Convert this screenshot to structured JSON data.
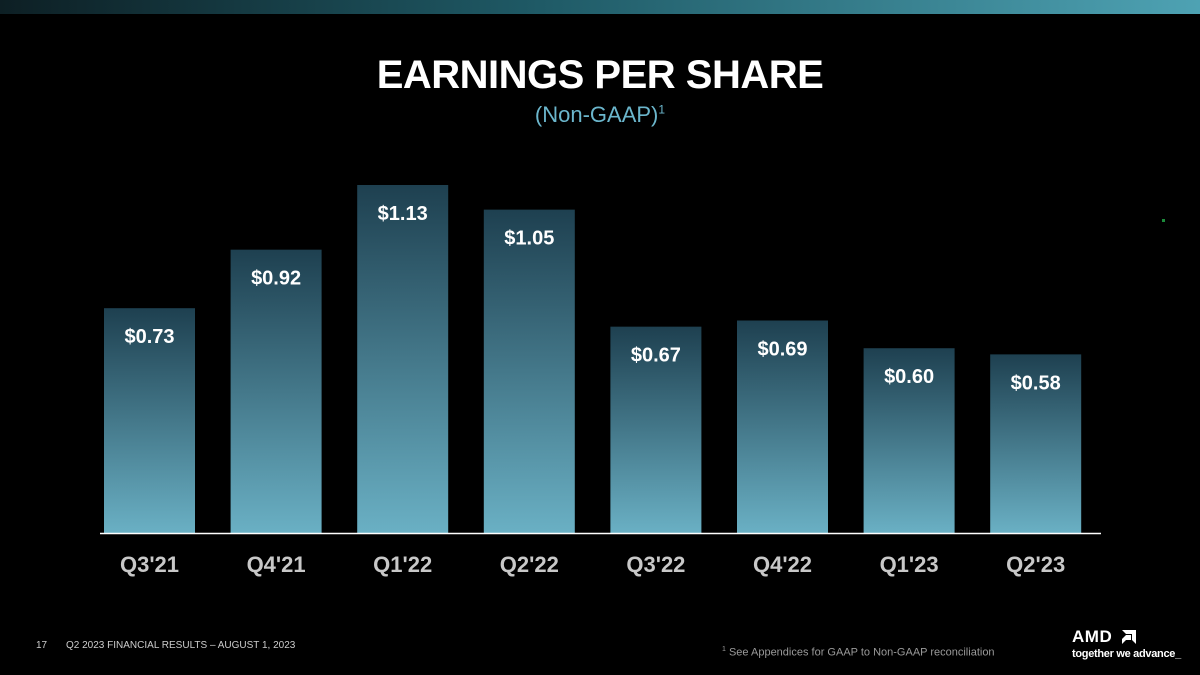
{
  "header": {
    "title": "EARNINGS PER SHARE",
    "subtitle": "(Non-GAAP)",
    "subtitle_marker": "1"
  },
  "chart_data": {
    "type": "bar",
    "categories": [
      "Q3'21",
      "Q4'21",
      "Q1'22",
      "Q2'22",
      "Q3'22",
      "Q4'22",
      "Q1'23",
      "Q2'23"
    ],
    "values": [
      0.73,
      0.92,
      1.13,
      1.05,
      0.67,
      0.69,
      0.6,
      0.58
    ],
    "labels": [
      "$0.73",
      "$0.92",
      "$1.13",
      "$1.05",
      "$0.67",
      "$0.69",
      "$0.60",
      "$0.58"
    ],
    "ylim": [
      0,
      1.13
    ],
    "grid": false,
    "legend": "none",
    "bar_gradient": [
      "#1e4050",
      "#6ab0c4"
    ],
    "axis_color": "#ffffff"
  },
  "footer": {
    "page_number": "17",
    "event_text": "Q2 2023 FINANCIAL RESULTS – AUGUST 1, 2023",
    "footnote_marker": "1",
    "footnote_text": "See Appendices for GAAP to Non-GAAP reconciliation"
  },
  "logo": {
    "wordmark": "AMD",
    "tagline": "together we advance_",
    "icon": "amd-arrow-icon"
  },
  "colors": {
    "background": "#000000",
    "accent": "#6bb6cc"
  }
}
